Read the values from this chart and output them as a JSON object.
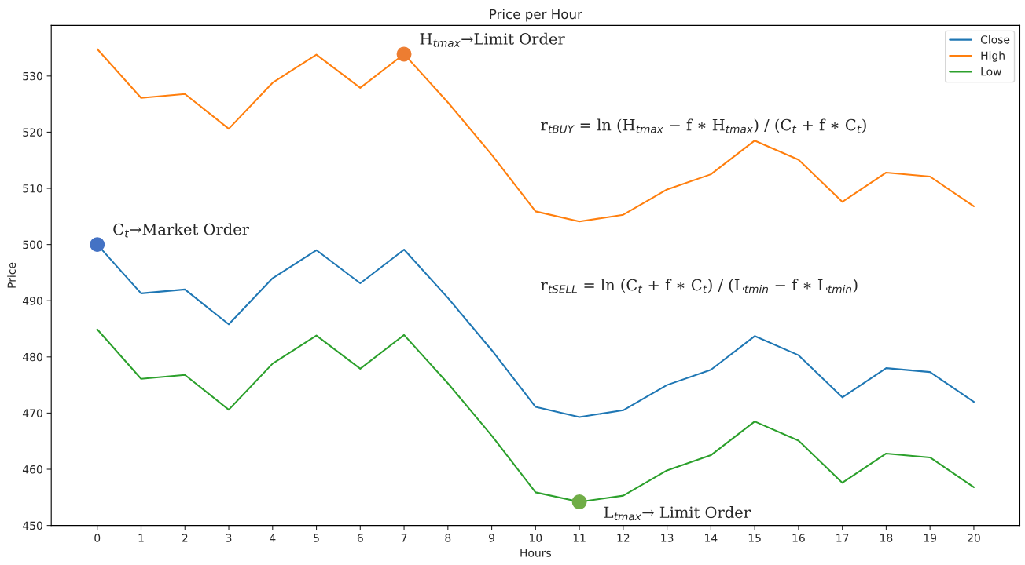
{
  "chart_data": {
    "type": "line",
    "title": "Price per Hour",
    "xlabel": "Hours",
    "ylabel": "Price",
    "x": [
      0,
      1,
      2,
      3,
      4,
      5,
      6,
      7,
      8,
      9,
      10,
      11,
      12,
      13,
      14,
      15,
      16,
      17,
      18,
      19,
      20
    ],
    "series": [
      {
        "name": "Close",
        "color": "#1f77b4",
        "values": [
          500,
          491.3,
          492,
          485.8,
          494,
          499,
          493.1,
          499.1,
          490.5,
          481.2,
          471.1,
          469.3,
          470.5,
          475,
          477.7,
          483.7,
          480.3,
          472.8,
          478,
          477.3,
          472
        ]
      },
      {
        "name": "High",
        "color": "#ff7f0e",
        "values": [
          534.8,
          526.1,
          526.8,
          520.6,
          528.8,
          533.8,
          527.9,
          533.9,
          525.3,
          516,
          505.9,
          504.1,
          505.3,
          509.8,
          512.5,
          518.5,
          515.1,
          507.6,
          512.8,
          512.1,
          506.8
        ]
      },
      {
        "name": "Low",
        "color": "#2ca02c",
        "values": [
          484.9,
          476.1,
          476.8,
          470.6,
          478.8,
          483.8,
          477.9,
          483.9,
          475.3,
          466,
          455.9,
          454.2,
          455.3,
          459.8,
          462.5,
          468.5,
          465.1,
          457.6,
          462.8,
          462.1,
          456.8
        ]
      },
      {
        "type": "scatter",
        "marker": "circle",
        "color": "#4472c4",
        "x": [
          0
        ],
        "values": [
          500
        ]
      },
      {
        "type": "scatter",
        "marker": "circle",
        "color": "#ed7d31",
        "x": [
          7
        ],
        "values": [
          533.9
        ]
      },
      {
        "type": "scatter",
        "marker": "circle",
        "color": "#70ad47",
        "x": [
          11
        ],
        "values": [
          454.2
        ]
      }
    ],
    "annotations": [
      {
        "text": "C$_{t}$→Market Order",
        "x": 0,
        "y": 500
      },
      {
        "text": "H$_{tmax}$→Limit Order",
        "x": 7,
        "y": 533.9
      },
      {
        "text": "L$_{tmax}$→ Limit Order",
        "x": 11,
        "y": 454.2
      },
      "r$_{tBUY}$ = ln (H$_{tmax}$ − f ∗ H$_{tmax}$) / (C$_{t}$ + f ∗ C$_{t}$)",
      "r$_{tSELL}$ = ln (C$_{t}$ + f ∗ C$_{t}$) / (L$_{tmin}$ − f ∗ L$_{tmin}$)"
    ],
    "xlim": [
      -1.05,
      21.05
    ],
    "ylim": [
      450,
      539
    ],
    "xticks": [
      0,
      1,
      2,
      3,
      4,
      5,
      6,
      7,
      8,
      9,
      10,
      11,
      12,
      13,
      14,
      15,
      16,
      17,
      18,
      19,
      20
    ],
    "yticks": [
      450,
      460,
      470,
      480,
      490,
      500,
      510,
      520,
      530
    ],
    "legend": "top right",
    "grid": false
  }
}
